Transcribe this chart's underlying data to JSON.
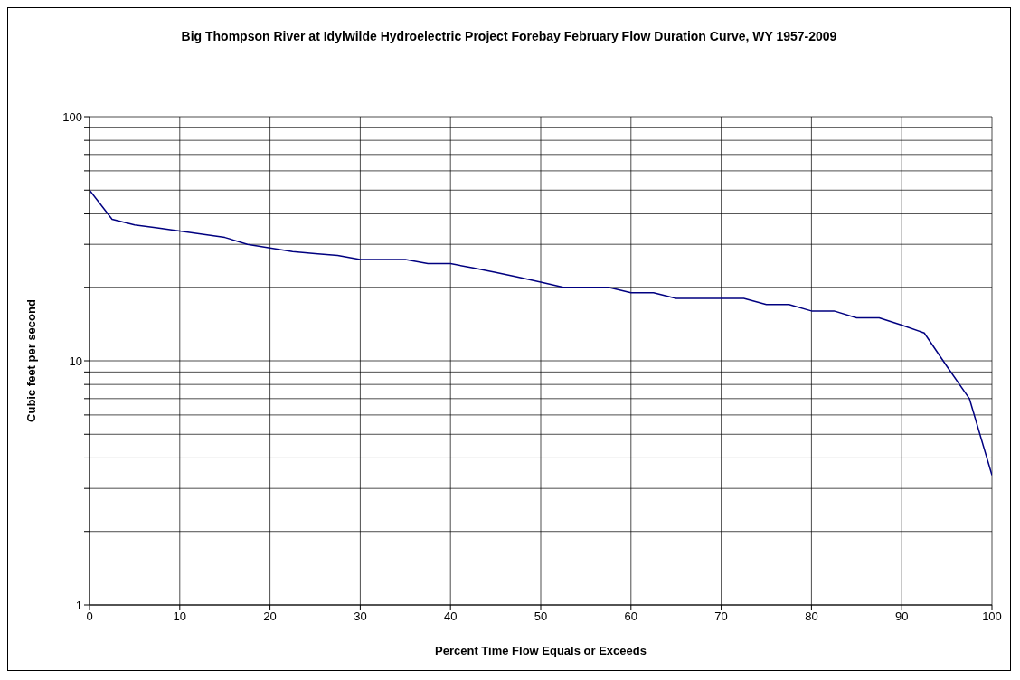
{
  "chart_data": {
    "type": "line",
    "title": "Big Thompson River at Idylwilde Hydroelectric Project Forebay February Flow Duration Curve, WY 1957-2009",
    "xlabel": "Percent Time Flow Equals or Exceeds",
    "ylabel": "Cubic feet per second",
    "x": [
      0,
      2.5,
      5,
      7.5,
      10,
      12.5,
      15,
      17.5,
      20,
      22.5,
      25,
      27.5,
      30,
      32.5,
      35,
      37.5,
      40,
      42.5,
      45,
      47.5,
      50,
      52.5,
      55,
      57.5,
      60,
      62.5,
      65,
      67.5,
      70,
      72.5,
      75,
      77.5,
      80,
      82.5,
      85,
      87.5,
      90,
      92.5,
      95,
      97.5,
      100
    ],
    "series": [
      {
        "color": "#000080",
        "values": [
          50,
          38,
          36,
          35,
          34,
          33,
          32,
          30,
          29,
          28,
          27.5,
          27,
          26,
          26,
          26,
          25,
          25,
          24,
          23,
          22,
          21,
          20,
          20,
          20,
          19,
          19,
          18,
          18,
          18,
          18,
          17,
          17,
          16,
          16,
          15,
          15,
          14,
          13,
          9.5,
          7,
          3.4
        ]
      }
    ],
    "xlim": [
      0,
      100
    ],
    "xticks": [
      0,
      10,
      20,
      30,
      40,
      50,
      60,
      70,
      80,
      90,
      100
    ],
    "ylim": [
      1,
      100
    ],
    "yticks": [
      1,
      {
        "value": 2,
        "label": null
      },
      {
        "value": 3,
        "label": null
      },
      {
        "value": 4,
        "label": null
      },
      {
        "value": 5,
        "label": null
      },
      {
        "value": 6,
        "label": null
      },
      {
        "value": 7,
        "label": null
      },
      {
        "value": 8,
        "label": null
      },
      {
        "value": 9,
        "label": null
      },
      10,
      {
        "value": 20,
        "label": null
      },
      {
        "value": 30,
        "label": null
      },
      {
        "value": 40,
        "label": null
      },
      {
        "value": 50,
        "label": null
      },
      {
        "value": 60,
        "label": null
      },
      {
        "value": 70,
        "label": null
      },
      {
        "value": 80,
        "label": null
      },
      {
        "value": 90,
        "label": null
      },
      100
    ],
    "log": "y",
    "grid": true,
    "legend": false,
    "marker": "none",
    "line_style": "solid"
  }
}
